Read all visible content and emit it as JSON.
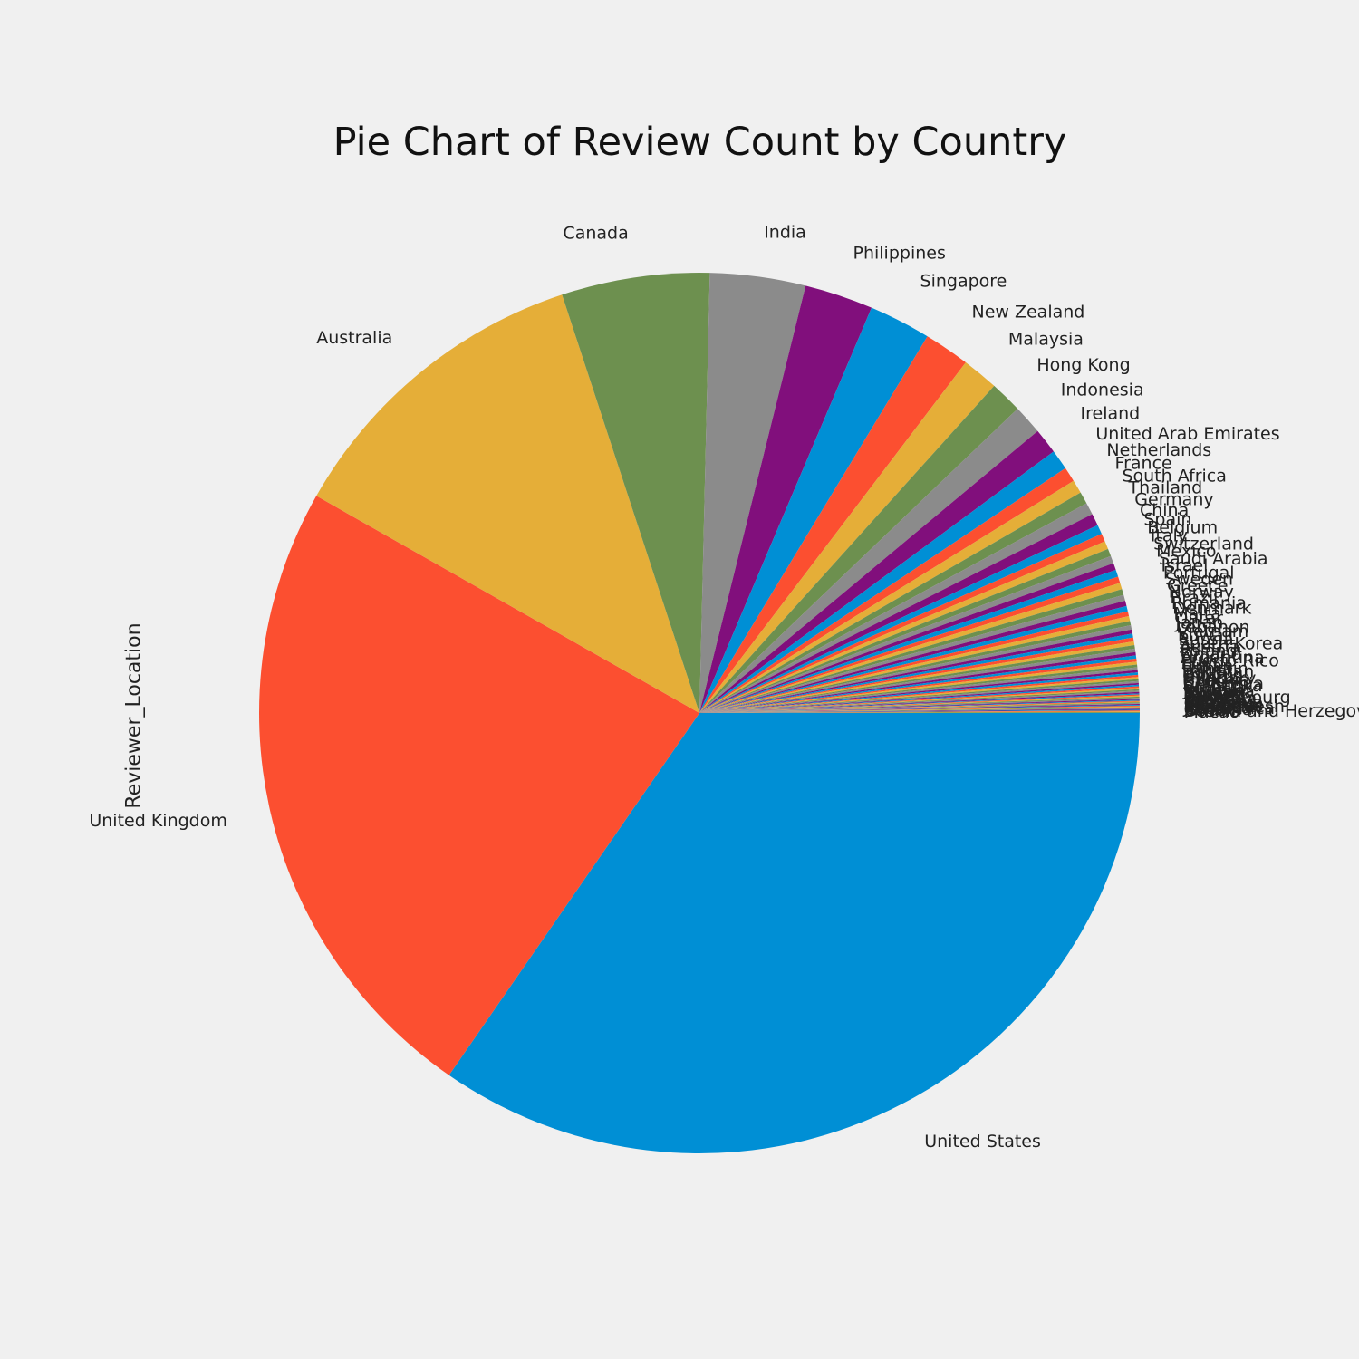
{
  "chart_data": {
    "type": "pie",
    "title": "Pie Chart of Review Count by Country",
    "ylabel": "Reviewer_Location",
    "start_angle_deg": 0,
    "direction": "clockwise",
    "slices": [
      {
        "label": "United States",
        "value": 35.1,
        "color": "#008fd5"
      },
      {
        "label": "United Kingdom",
        "value": 23.9,
        "color": "#fc4f30"
      },
      {
        "label": "Australia",
        "value": 11.9,
        "color": "#e5ae38"
      },
      {
        "label": "Canada",
        "value": 5.5,
        "color": "#6d904f"
      },
      {
        "label": "India",
        "value": 3.55,
        "color": "#8b8b8b"
      },
      {
        "label": "Philippines",
        "value": 2.55,
        "color": "#810f7c"
      },
      {
        "label": "Singapore",
        "value": 2.3,
        "color": "#008fd5"
      },
      {
        "label": "New Zealand",
        "value": 1.7,
        "color": "#fc4f30"
      },
      {
        "label": "Malaysia",
        "value": 1.35,
        "color": "#e5ae38"
      },
      {
        "label": "Hong Kong",
        "value": 1.2,
        "color": "#6d904f"
      },
      {
        "label": "Indonesia",
        "value": 1.1,
        "color": "#8b8b8b"
      },
      {
        "label": "Ireland",
        "value": 0.95,
        "color": "#810f7c"
      },
      {
        "label": "United Arab Emirates",
        "value": 0.75,
        "color": "#008fd5"
      },
      {
        "label": "Netherlands",
        "value": 0.55,
        "color": "#fc4f30"
      },
      {
        "label": "France",
        "value": 0.5,
        "color": "#e5ae38"
      },
      {
        "label": "South Africa",
        "value": 0.45,
        "color": "#6d904f"
      },
      {
        "label": "Thailand",
        "value": 0.45,
        "color": "#8b8b8b"
      },
      {
        "label": "Germany",
        "value": 0.45,
        "color": "#810f7c"
      },
      {
        "label": "China",
        "value": 0.35,
        "color": "#008fd5"
      },
      {
        "label": "Spain",
        "value": 0.3,
        "color": "#fc4f30"
      },
      {
        "label": "Belgium",
        "value": 0.3,
        "color": "#e5ae38"
      },
      {
        "label": "Italy",
        "value": 0.28,
        "color": "#6d904f"
      },
      {
        "label": "Switzerland",
        "value": 0.28,
        "color": "#8b8b8b"
      },
      {
        "label": "Mexico",
        "value": 0.26,
        "color": "#810f7c"
      },
      {
        "label": "Saudi Arabia",
        "value": 0.26,
        "color": "#008fd5"
      },
      {
        "label": "Israel",
        "value": 0.24,
        "color": "#fc4f30"
      },
      {
        "label": "Portugal",
        "value": 0.24,
        "color": "#e5ae38"
      },
      {
        "label": "Sweden",
        "value": 0.22,
        "color": "#6d904f"
      },
      {
        "label": "Greece",
        "value": 0.22,
        "color": "#8b8b8b"
      },
      {
        "label": "Norway",
        "value": 0.2,
        "color": "#810f7c"
      },
      {
        "label": "Brazil",
        "value": 0.2,
        "color": "#008fd5"
      },
      {
        "label": "Romania",
        "value": 0.18,
        "color": "#fc4f30"
      },
      {
        "label": "Denmark",
        "value": 0.18,
        "color": "#e5ae38"
      },
      {
        "label": "Malta",
        "value": 0.16,
        "color": "#6d904f"
      },
      {
        "label": "Qatar",
        "value": 0.16,
        "color": "#8b8b8b"
      },
      {
        "label": "Japan",
        "value": 0.15,
        "color": "#810f7c"
      },
      {
        "label": "Lebanon",
        "value": 0.15,
        "color": "#008fd5"
      },
      {
        "label": "Vietnam",
        "value": 0.14,
        "color": "#fc4f30"
      },
      {
        "label": "Kuwait",
        "value": 0.14,
        "color": "#e5ae38"
      },
      {
        "label": "Russia",
        "value": 0.13,
        "color": "#6d904f"
      },
      {
        "label": "South Korea",
        "value": 0.13,
        "color": "#8b8b8b"
      },
      {
        "label": "Austria",
        "value": 0.12,
        "color": "#810f7c"
      },
      {
        "label": "Poland",
        "value": 0.12,
        "color": "#008fd5"
      },
      {
        "label": "Finland",
        "value": 0.11,
        "color": "#fc4f30"
      },
      {
        "label": "Argentina",
        "value": 0.11,
        "color": "#e5ae38"
      },
      {
        "label": "Puerto Rico",
        "value": 0.1,
        "color": "#6d904f"
      },
      {
        "label": "Egypt",
        "value": 0.1,
        "color": "#8b8b8b"
      },
      {
        "label": "Oman",
        "value": 0.09,
        "color": "#810f7c"
      },
      {
        "label": "Bahrain",
        "value": 0.09,
        "color": "#008fd5"
      },
      {
        "label": "Pakistan",
        "value": 0.08,
        "color": "#fc4f30"
      },
      {
        "label": "Turkey",
        "value": 0.08,
        "color": "#e5ae38"
      },
      {
        "label": "Cyprus",
        "value": 0.07,
        "color": "#6d904f"
      },
      {
        "label": "Hungary",
        "value": 0.07,
        "color": "#8b8b8b"
      },
      {
        "label": "Czechia",
        "value": 0.06,
        "color": "#810f7c"
      },
      {
        "label": "Chile",
        "value": 0.06,
        "color": "#008fd5"
      },
      {
        "label": "Colombia",
        "value": 0.06,
        "color": "#fc4f30"
      },
      {
        "label": "Sri Lanka",
        "value": 0.05,
        "color": "#e5ae38"
      },
      {
        "label": "Croatia",
        "value": 0.05,
        "color": "#6d904f"
      },
      {
        "label": "Peru",
        "value": 0.05,
        "color": "#8b8b8b"
      },
      {
        "label": "Jordan",
        "value": 0.05,
        "color": "#810f7c"
      },
      {
        "label": "Bulgaria",
        "value": 0.04,
        "color": "#008fd5"
      },
      {
        "label": "Ukraine",
        "value": 0.04,
        "color": "#fc4f30"
      },
      {
        "label": "Taiwan",
        "value": 0.04,
        "color": "#e5ae38"
      },
      {
        "label": "Iceland",
        "value": 0.04,
        "color": "#6d904f"
      },
      {
        "label": "Brunei",
        "value": 0.04,
        "color": "#8b8b8b"
      },
      {
        "label": "Luxembourg",
        "value": 0.04,
        "color": "#810f7c"
      },
      {
        "label": "Slovenia",
        "value": 0.03,
        "color": "#008fd5"
      },
      {
        "label": "Serbia",
        "value": 0.03,
        "color": "#fc4f30"
      },
      {
        "label": "Kenya",
        "value": 0.03,
        "color": "#e5ae38"
      },
      {
        "label": "Nigeria",
        "value": 0.03,
        "color": "#6d904f"
      },
      {
        "label": "Estonia",
        "value": 0.03,
        "color": "#8b8b8b"
      },
      {
        "label": "Lithuania",
        "value": 0.03,
        "color": "#810f7c"
      },
      {
        "label": "Latvia",
        "value": 0.03,
        "color": "#008fd5"
      },
      {
        "label": "Slovakia",
        "value": 0.03,
        "color": "#fc4f30"
      },
      {
        "label": "Mauritius",
        "value": 0.03,
        "color": "#e5ae38"
      },
      {
        "label": "Bangladesh",
        "value": 0.03,
        "color": "#6d904f"
      },
      {
        "label": "Jamaica",
        "value": 0.03,
        "color": "#8b8b8b"
      },
      {
        "label": "Costa Rica",
        "value": 0.03,
        "color": "#810f7c"
      },
      {
        "label": "Panama",
        "value": 0.03,
        "color": "#008fd5"
      },
      {
        "label": "Guam",
        "value": 0.03,
        "color": "#fc4f30"
      },
      {
        "label": "Bosnia and Herzegovina",
        "value": 0.03,
        "color": "#e5ae38"
      },
      {
        "label": "Macao",
        "value": 0.03,
        "color": "#6d904f"
      }
    ]
  }
}
